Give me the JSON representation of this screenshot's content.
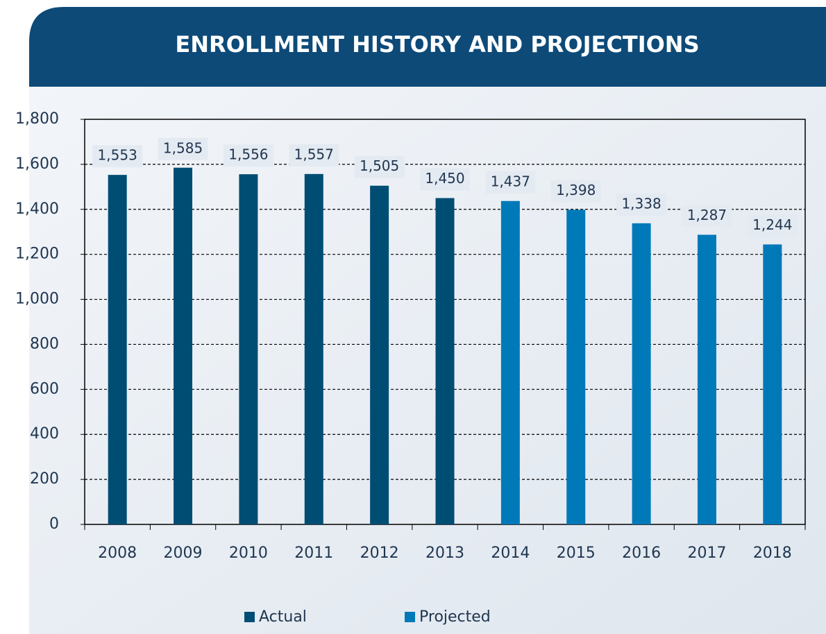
{
  "chart_data": {
    "type": "bar",
    "title": "ENROLLMENT HISTORY AND PROJECTIONS",
    "categories": [
      "2008",
      "2009",
      "2010",
      "2011",
      "2012",
      "2013",
      "2014",
      "2015",
      "2016",
      "2017",
      "2018"
    ],
    "series": [
      {
        "name": "Actual",
        "color": "#004d74",
        "values": [
          1553,
          1585,
          1556,
          1557,
          1505,
          1450,
          null,
          null,
          null,
          null,
          null
        ],
        "value_labels": [
          "1,553",
          "1,585",
          "1,556",
          "1,557",
          "1,505",
          "1,450",
          null,
          null,
          null,
          null,
          null
        ]
      },
      {
        "name": "Projected",
        "color": "#0079b8",
        "values": [
          null,
          null,
          null,
          null,
          null,
          null,
          1437,
          1398,
          1338,
          1287,
          1244
        ],
        "value_labels": [
          null,
          null,
          null,
          null,
          null,
          null,
          "1,437",
          "1,398",
          "1,338",
          "1,287",
          "1,244"
        ]
      }
    ],
    "ylim": [
      0,
      1800
    ],
    "yticks": [
      0,
      200,
      400,
      600,
      800,
      {
        "value": 1000,
        "label": "1,000"
      },
      {
        "value": 1200,
        "label": "1,200"
      },
      {
        "value": 1400,
        "label": "1,400"
      },
      {
        "value": 1600,
        "label": "1,600"
      },
      {
        "value": 1800,
        "label": "1,800"
      }
    ],
    "grid": true,
    "legend": "bottom"
  }
}
